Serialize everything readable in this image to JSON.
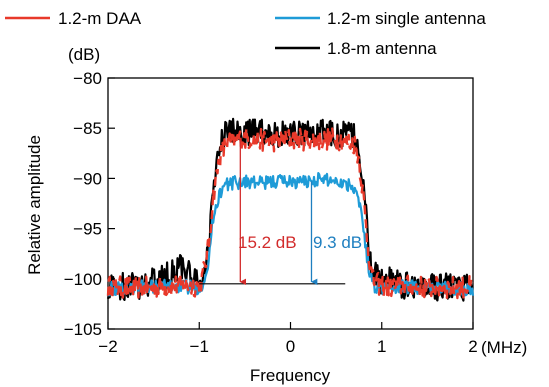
{
  "chart_data": {
    "type": "line",
    "xlabel": "Frequency",
    "ylabel": "Relative amplitude",
    "x_unit": "(MHz)",
    "y_unit": "(dB)",
    "xlim": [
      -2,
      2
    ],
    "ylim": [
      -105,
      -80
    ],
    "x_ticks": [
      -2,
      -1,
      0,
      1,
      2
    ],
    "x_tick_labels": [
      "−2",
      "−1",
      "0",
      "1",
      "2"
    ],
    "y_ticks": [
      -80,
      -85,
      -90,
      -95,
      -100,
      -105
    ],
    "y_tick_labels": [
      "−80",
      "−85",
      "−90",
      "−95",
      "−100",
      "−105"
    ],
    "grid": false,
    "legend_position": "top",
    "series": [
      {
        "name": "1.2-m DAA",
        "color": "#e8392a",
        "x": [
          -2.0,
          -1.6,
          -1.2,
          -1.05,
          -0.98,
          -0.9,
          -0.85,
          -0.78,
          -0.7,
          -0.6,
          -0.5,
          -0.3,
          -0.1,
          0.0,
          0.1,
          0.3,
          0.5,
          0.6,
          0.7,
          0.75,
          0.8,
          0.85,
          0.9,
          0.98,
          1.05,
          1.2,
          1.6,
          2.0
        ],
        "y": [
          -100.8,
          -100.9,
          -100.6,
          -100.7,
          -100.5,
          -97.0,
          -92.0,
          -88.0,
          -86.5,
          -86.2,
          -86.0,
          -86.2,
          -86.3,
          -86.0,
          -86.1,
          -86.2,
          -86.0,
          -86.3,
          -86.5,
          -88.0,
          -92.0,
          -97.0,
          -100.2,
          -100.6,
          -100.8,
          -100.7,
          -100.9,
          -100.8
        ]
      },
      {
        "name": "1.2-m single antenna",
        "color": "#1e9bd7",
        "x": [
          -2.0,
          -1.6,
          -1.2,
          -1.05,
          -0.98,
          -0.9,
          -0.85,
          -0.78,
          -0.7,
          -0.6,
          -0.5,
          -0.3,
          -0.1,
          0.0,
          0.1,
          0.3,
          0.5,
          0.6,
          0.7,
          0.75,
          0.8,
          0.85,
          0.9,
          0.98,
          1.05,
          1.2,
          1.6,
          2.0
        ],
        "y": [
          -101.0,
          -100.8,
          -100.7,
          -100.9,
          -100.8,
          -98.5,
          -94.0,
          -91.5,
          -90.6,
          -90.4,
          -90.3,
          -90.5,
          -90.2,
          -90.3,
          -90.4,
          -90.1,
          -90.2,
          -90.5,
          -90.8,
          -92.0,
          -95.0,
          -98.5,
          -100.6,
          -100.8,
          -101.0,
          -100.8,
          -100.9,
          -101.0
        ]
      },
      {
        "name": "1.8-m antenna",
        "color": "#000000",
        "x": [
          -2.0,
          -1.6,
          -1.3,
          -1.2,
          -1.1,
          -1.05,
          -0.98,
          -0.9,
          -0.85,
          -0.78,
          -0.7,
          -0.6,
          -0.5,
          -0.3,
          -0.1,
          0.0,
          0.1,
          0.3,
          0.5,
          0.6,
          0.7,
          0.75,
          0.8,
          0.85,
          0.9,
          0.98,
          1.05,
          1.1,
          1.2,
          1.6,
          2.0
        ],
        "y": [
          -100.9,
          -100.7,
          -99.5,
          -98.5,
          -99.8,
          -100.4,
          -100.6,
          -97.0,
          -91.5,
          -87.0,
          -85.5,
          -85.3,
          -85.6,
          -85.2,
          -85.7,
          -85.4,
          -85.6,
          -85.3,
          -85.8,
          -85.5,
          -86.0,
          -87.5,
          -91.0,
          -96.0,
          -99.5,
          -100.2,
          -99.8,
          -100.4,
          -100.6,
          -100.8,
          -100.9
        ]
      }
    ],
    "reference_line": {
      "x_start": -1.0,
      "x_end": 0.6,
      "y": -100.5,
      "color": "#000000"
    },
    "annotations": [
      {
        "text": "15.2 dB",
        "x": -0.55,
        "y_top": -86.0,
        "y_bottom": -100.5,
        "color": "#d22b2b"
      },
      {
        "text": "9.3 dB",
        "x": 0.23,
        "y_top": -90.3,
        "y_bottom": -100.5,
        "color": "#1e7fc0"
      }
    ]
  }
}
